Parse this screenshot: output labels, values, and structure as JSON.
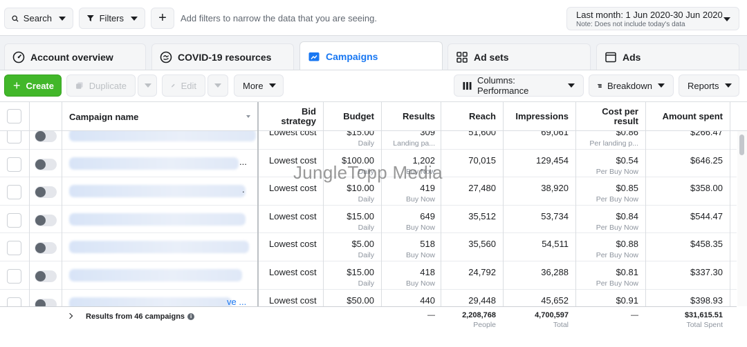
{
  "topbar": {
    "search_label": "Search",
    "filters_label": "Filters",
    "add_symbol": "+",
    "filter_hint": "Add filters to narrow the data that you are seeing.",
    "date_range": "Last month: 1 Jun 2020-30 Jun 2020",
    "date_note": "Note: Does not include today's data"
  },
  "tabs": [
    {
      "label": "Account overview",
      "icon": "dashboard-icon",
      "active": false
    },
    {
      "label": "COVID-19 resources",
      "icon": "covid-icon",
      "active": false
    },
    {
      "label": "Campaigns",
      "icon": "folder-icon",
      "active": true
    },
    {
      "label": "Ad sets",
      "icon": "grid-icon",
      "active": false
    },
    {
      "label": "Ads",
      "icon": "ad-icon",
      "active": false
    }
  ],
  "toolbar": {
    "create": "Create",
    "duplicate": "Duplicate",
    "edit": "Edit",
    "more": "More",
    "columns": "Columns: Performance",
    "breakdown": "Breakdown",
    "reports": "Reports"
  },
  "columns": {
    "campaign_name": "Campaign name",
    "bid_strategy_1": "Bid",
    "bid_strategy_2": "strategy",
    "budget": "Budget",
    "results": "Results",
    "reach": "Reach",
    "impressions": "Impressions",
    "cost_1": "Cost per",
    "cost_2": "result",
    "amount_spent": "Amount spent"
  },
  "rows": [
    {
      "name_tail": "",
      "bid": "Lowest cost",
      "budget": "$15.00",
      "budget_sub": "Daily",
      "results": "309",
      "results_sub": "Landing pa...",
      "reach": "51,600",
      "impressions": "69,061",
      "cost": "$0.86",
      "cost_sub": "Per landing p...",
      "spent": "$266.47"
    },
    {
      "name_tail": "...",
      "bid": "Lowest cost",
      "budget": "$100.00",
      "budget_sub": "Daily",
      "results": "1,202",
      "results_sub": "Buy Now",
      "reach": "70,015",
      "impressions": "129,454",
      "cost": "$0.54",
      "cost_sub": "Per Buy Now",
      "spent": "$646.25"
    },
    {
      "name_tail": ".",
      "bid": "Lowest cost",
      "budget": "$10.00",
      "budget_sub": "Daily",
      "results": "419",
      "results_sub": "Buy Now",
      "reach": "27,480",
      "impressions": "38,920",
      "cost": "$0.85",
      "cost_sub": "Per Buy Now",
      "spent": "$358.00"
    },
    {
      "name_tail": "",
      "bid": "Lowest cost",
      "budget": "$15.00",
      "budget_sub": "Daily",
      "results": "649",
      "results_sub": "Buy Now",
      "reach": "35,512",
      "impressions": "53,734",
      "cost": "$0.84",
      "cost_sub": "Per Buy Now",
      "spent": "$544.47"
    },
    {
      "name_tail": "",
      "bid": "Lowest cost",
      "budget": "$5.00",
      "budget_sub": "Daily",
      "results": "518",
      "results_sub": "Buy Now",
      "reach": "35,560",
      "impressions": "54,511",
      "cost": "$0.88",
      "cost_sub": "Per Buy Now",
      "spent": "$458.35"
    },
    {
      "name_tail": "",
      "bid": "Lowest cost",
      "budget": "$15.00",
      "budget_sub": "Daily",
      "results": "418",
      "results_sub": "Buy Now",
      "reach": "24,792",
      "impressions": "36,288",
      "cost": "$0.81",
      "cost_sub": "Per Buy Now",
      "spent": "$337.30"
    },
    {
      "name_tail": "ve ...",
      "bid": "Lowest cost",
      "budget": "$50.00",
      "budget_sub": "",
      "results": "440",
      "results_sub": "",
      "reach": "29,448",
      "impressions": "45,652",
      "cost": "$0.91",
      "cost_sub": "",
      "spent": "$398.93"
    }
  ],
  "summary": {
    "label": "Results from 46 campaigns",
    "results": "—",
    "reach": "2,208,768",
    "reach_sub": "People",
    "impressions": "4,700,597",
    "impressions_sub": "Total",
    "cost": "—",
    "spent": "$31,615.51",
    "spent_sub": "Total Spent"
  },
  "watermark": "JungleTopp Media",
  "colors": {
    "accent": "#1877f2",
    "create_green": "#42b72a"
  }
}
